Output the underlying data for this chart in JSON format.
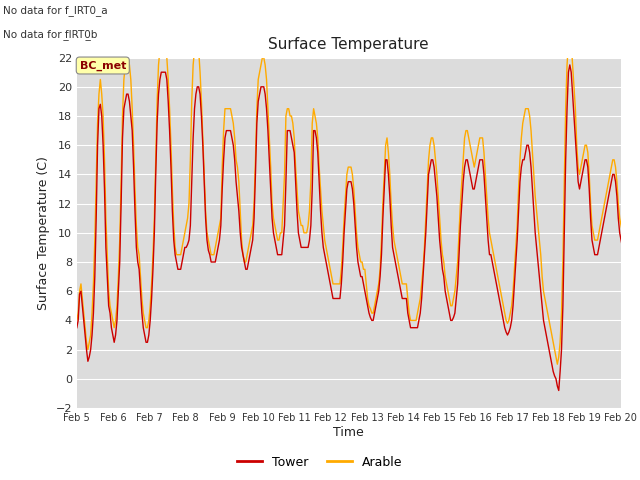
{
  "title": "Surface Temperature",
  "xlabel": "Time",
  "ylabel": "Surface Temperature (C)",
  "ylim": [
    -2,
    22
  ],
  "yticks": [
    -2,
    0,
    2,
    4,
    6,
    8,
    10,
    12,
    14,
    16,
    18,
    20,
    22
  ],
  "bg_color": "#dcdcdc",
  "fig_color": "#ffffff",
  "line_tower_color": "#cc0000",
  "line_arable_color": "#ffaa00",
  "legend_label_tower": "Tower",
  "legend_label_arable": "Arable",
  "bc_met_label": "BC_met",
  "no_data_text1": "No data for f_IRT0_a",
  "no_data_text2": "No data for f̲IRT0̲b",
  "xtick_labels": [
    "Feb 5",
    "Feb 6",
    "Feb 7",
    "Feb 8",
    "Feb 9",
    "Feb 10",
    "Feb 11",
    "Feb 12",
    "Feb 13",
    "Feb 14",
    "Feb 15",
    "Feb 16",
    "Feb 17",
    "Feb 18",
    "Feb 19",
    "Feb 20"
  ],
  "tower_data": [
    3.5,
    4.0,
    5.8,
    6.0,
    5.0,
    4.0,
    3.0,
    2.0,
    1.2,
    1.5,
    2.0,
    3.0,
    4.5,
    7.0,
    11.0,
    16.0,
    18.5,
    18.8,
    18.0,
    16.0,
    13.0,
    9.0,
    7.0,
    5.0,
    4.5,
    3.5,
    3.0,
    2.5,
    3.0,
    4.0,
    6.0,
    8.0,
    12.0,
    16.5,
    18.5,
    19.0,
    19.5,
    19.5,
    19.0,
    18.0,
    17.0,
    14.5,
    11.5,
    9.0,
    8.0,
    7.5,
    6.0,
    4.5,
    3.5,
    3.0,
    2.5,
    2.5,
    3.0,
    4.0,
    5.5,
    7.5,
    10.0,
    14.0,
    17.5,
    19.5,
    20.5,
    21.0,
    21.0,
    21.0,
    21.0,
    20.5,
    19.0,
    17.0,
    14.5,
    11.5,
    9.5,
    8.5,
    8.0,
    7.5,
    7.5,
    7.5,
    8.0,
    8.5,
    9.0,
    9.0,
    9.2,
    9.5,
    10.5,
    13.5,
    16.5,
    18.5,
    19.5,
    20.0,
    20.0,
    19.5,
    18.0,
    16.0,
    13.5,
    11.0,
    9.5,
    8.8,
    8.5,
    8.0,
    8.0,
    8.0,
    8.0,
    8.5,
    9.0,
    9.5,
    10.5,
    13.0,
    15.0,
    16.5,
    17.0,
    17.0,
    17.0,
    17.0,
    16.5,
    16.0,
    15.0,
    13.5,
    12.5,
    11.5,
    10.0,
    9.0,
    8.5,
    8.0,
    7.5,
    7.5,
    8.0,
    8.5,
    9.0,
    9.5,
    11.0,
    14.0,
    17.5,
    19.0,
    19.5,
    20.0,
    20.0,
    20.0,
    19.5,
    18.5,
    17.0,
    15.0,
    13.0,
    11.0,
    10.0,
    9.5,
    9.0,
    8.5,
    8.5,
    8.5,
    8.5,
    9.5,
    10.5,
    13.5,
    17.0,
    17.0,
    17.0,
    16.5,
    16.0,
    15.5,
    13.5,
    11.5,
    10.0,
    9.5,
    9.0,
    9.0,
    9.0,
    9.0,
    9.0,
    9.0,
    9.5,
    10.5,
    13.0,
    17.0,
    17.0,
    16.5,
    15.5,
    13.5,
    11.5,
    10.0,
    9.0,
    8.5,
    8.0,
    7.5,
    7.0,
    6.5,
    6.0,
    5.5,
    5.5,
    5.5,
    5.5,
    5.5,
    5.5,
    6.5,
    8.0,
    10.0,
    11.5,
    13.0,
    13.5,
    13.5,
    13.5,
    13.0,
    12.0,
    10.5,
    9.0,
    8.0,
    7.5,
    7.0,
    7.0,
    6.5,
    6.0,
    5.5,
    5.0,
    4.5,
    4.2,
    4.0,
    4.0,
    4.5,
    5.0,
    5.5,
    6.0,
    7.0,
    8.5,
    11.0,
    13.0,
    15.0,
    15.0,
    14.0,
    12.5,
    10.5,
    9.0,
    8.5,
    8.0,
    7.5,
    7.0,
    6.5,
    6.0,
    5.5,
    5.5,
    5.5,
    5.5,
    4.5,
    4.0,
    3.5,
    3.5,
    3.5,
    3.5,
    3.5,
    3.5,
    4.0,
    4.5,
    5.5,
    7.0,
    8.5,
    10.0,
    12.0,
    14.0,
    14.5,
    15.0,
    15.0,
    14.5,
    13.5,
    12.5,
    11.0,
    9.5,
    8.5,
    7.5,
    7.0,
    6.0,
    5.5,
    5.0,
    4.5,
    4.0,
    4.0,
    4.2,
    4.5,
    5.5,
    6.5,
    8.5,
    10.5,
    12.0,
    13.5,
    14.5,
    15.0,
    15.0,
    14.5,
    14.0,
    13.5,
    13.0,
    13.0,
    13.5,
    14.0,
    14.5,
    15.0,
    15.0,
    15.0,
    14.0,
    12.5,
    11.0,
    9.5,
    8.5,
    8.5,
    8.0,
    7.5,
    7.0,
    6.5,
    6.0,
    5.5,
    5.0,
    4.5,
    4.0,
    3.5,
    3.2,
    3.0,
    3.2,
    3.5,
    4.0,
    5.0,
    6.5,
    8.0,
    9.5,
    11.5,
    13.5,
    14.5,
    15.0,
    15.0,
    15.5,
    16.0,
    16.0,
    15.5,
    14.5,
    13.0,
    11.5,
    10.0,
    9.0,
    8.0,
    7.0,
    6.0,
    5.0,
    4.0,
    3.5,
    3.0,
    2.5,
    2.0,
    1.5,
    1.0,
    0.5,
    0.2,
    0.0,
    -0.5,
    -0.8,
    0.5,
    2.0,
    5.0,
    10.0,
    15.0,
    18.5,
    21.0,
    21.5,
    21.0,
    19.5,
    18.0,
    16.5,
    15.0,
    13.5,
    13.0,
    13.5,
    14.0,
    14.5,
    15.0,
    15.0,
    14.5,
    13.0,
    11.0,
    9.5,
    9.0,
    8.5,
    8.5,
    8.5,
    9.0,
    9.5,
    10.0,
    10.5,
    11.0,
    11.5,
    12.0,
    12.5,
    13.0,
    13.5,
    14.0,
    14.0,
    13.5,
    12.5,
    11.0,
    10.0,
    9.5,
    9.0,
    8.5,
    8.0,
    7.5,
    7.0,
    6.5,
    6.0,
    5.5,
    5.5,
    5.5,
    6.0,
    7.0,
    8.5,
    9.5,
    10.0,
    10.5,
    11.0,
    11.0,
    11.0,
    10.5,
    10.0,
    9.5,
    9.0,
    8.5,
    8.0,
    7.5
  ],
  "arable_data": [
    4.0,
    4.5,
    6.0,
    6.5,
    5.5,
    4.5,
    3.5,
    2.5,
    2.0,
    2.5,
    3.0,
    4.5,
    6.5,
    9.5,
    13.5,
    17.5,
    19.5,
    20.5,
    19.5,
    18.0,
    15.0,
    11.0,
    8.5,
    6.0,
    5.0,
    4.5,
    4.0,
    3.5,
    4.0,
    5.0,
    7.0,
    9.5,
    13.5,
    18.0,
    20.5,
    21.5,
    22.0,
    22.0,
    21.5,
    20.5,
    18.5,
    16.0,
    13.0,
    10.5,
    9.0,
    8.5,
    7.0,
    5.5,
    4.5,
    4.0,
    3.5,
    3.5,
    4.0,
    5.0,
    6.5,
    8.5,
    11.0,
    15.0,
    19.0,
    21.5,
    22.5,
    23.0,
    23.0,
    23.0,
    22.5,
    22.0,
    20.5,
    18.5,
    16.0,
    13.0,
    10.5,
    9.0,
    8.5,
    8.5,
    8.5,
    8.5,
    9.0,
    9.5,
    10.0,
    10.5,
    11.0,
    12.0,
    15.0,
    19.0,
    21.5,
    22.5,
    23.0,
    23.0,
    22.5,
    21.0,
    19.0,
    16.5,
    14.0,
    11.5,
    10.0,
    9.5,
    9.0,
    8.5,
    8.5,
    8.5,
    9.0,
    9.5,
    10.0,
    10.5,
    11.0,
    14.5,
    17.0,
    18.5,
    18.5,
    18.5,
    18.5,
    18.5,
    18.0,
    17.5,
    16.5,
    15.0,
    14.5,
    13.5,
    11.5,
    9.5,
    8.5,
    8.0,
    8.0,
    8.5,
    9.0,
    9.5,
    10.0,
    10.5,
    12.0,
    15.0,
    18.5,
    20.5,
    21.0,
    21.5,
    22.0,
    22.0,
    21.5,
    20.5,
    18.5,
    16.5,
    14.5,
    12.0,
    11.0,
    10.5,
    10.0,
    9.5,
    9.5,
    10.0,
    10.0,
    12.0,
    14.0,
    18.0,
    18.5,
    18.5,
    18.0,
    18.0,
    17.5,
    16.5,
    14.5,
    13.0,
    11.5,
    11.0,
    10.5,
    10.5,
    10.0,
    10.0,
    10.0,
    10.5,
    11.5,
    13.5,
    17.5,
    18.5,
    18.0,
    17.5,
    16.5,
    14.5,
    13.0,
    11.5,
    10.5,
    9.5,
    9.0,
    8.5,
    8.0,
    7.5,
    7.0,
    6.5,
    6.5,
    6.5,
    6.5,
    6.5,
    6.5,
    7.5,
    9.0,
    11.0,
    12.5,
    14.0,
    14.5,
    14.5,
    14.5,
    14.0,
    13.0,
    11.5,
    10.0,
    9.0,
    8.5,
    8.0,
    8.0,
    7.5,
    7.5,
    6.5,
    5.5,
    5.0,
    4.8,
    4.5,
    4.5,
    5.0,
    5.5,
    6.0,
    6.5,
    7.5,
    9.5,
    12.0,
    14.0,
    16.0,
    16.5,
    15.5,
    14.0,
    12.0,
    10.5,
    9.5,
    9.0,
    8.5,
    8.0,
    7.5,
    7.0,
    6.5,
    6.5,
    6.5,
    6.5,
    5.5,
    4.5,
    4.0,
    4.0,
    4.0,
    4.0,
    4.0,
    4.5,
    5.0,
    5.5,
    6.5,
    7.5,
    9.0,
    11.0,
    13.0,
    15.0,
    16.0,
    16.5,
    16.5,
    16.0,
    15.0,
    14.0,
    12.5,
    11.0,
    9.5,
    8.5,
    8.0,
    7.0,
    6.5,
    6.0,
    5.5,
    5.0,
    5.0,
    5.5,
    6.0,
    7.0,
    8.0,
    10.0,
    12.0,
    13.5,
    15.0,
    16.5,
    17.0,
    17.0,
    16.5,
    16.0,
    15.5,
    15.0,
    14.5,
    15.0,
    15.5,
    16.0,
    16.5,
    16.5,
    16.5,
    15.5,
    14.0,
    12.5,
    11.0,
    10.0,
    9.5,
    9.0,
    8.5,
    8.0,
    7.5,
    7.0,
    6.5,
    6.0,
    5.5,
    5.0,
    4.5,
    4.0,
    3.8,
    4.0,
    4.5,
    5.0,
    6.0,
    7.5,
    9.0,
    10.5,
    13.0,
    15.0,
    16.5,
    17.5,
    18.0,
    18.5,
    18.5,
    18.5,
    18.0,
    17.0,
    15.5,
    14.0,
    12.5,
    11.5,
    10.5,
    9.5,
    8.5,
    7.0,
    6.0,
    5.5,
    5.0,
    4.5,
    4.0,
    3.5,
    3.0,
    2.5,
    2.0,
    1.5,
    1.0,
    1.5,
    2.5,
    4.5,
    8.0,
    13.5,
    18.5,
    21.5,
    23.0,
    23.5,
    23.0,
    21.5,
    20.0,
    18.5,
    16.0,
    14.5,
    14.0,
    14.5,
    15.0,
    15.5,
    16.0,
    16.0,
    15.5,
    14.0,
    12.0,
    10.5,
    10.0,
    9.5,
    9.5,
    9.5,
    10.0,
    10.5,
    11.0,
    11.5,
    12.0,
    12.5,
    13.0,
    13.5,
    14.0,
    14.5,
    15.0,
    15.0,
    14.5,
    13.5,
    12.0,
    11.0,
    10.5,
    10.0,
    9.5,
    9.0,
    8.5,
    8.0,
    7.5,
    7.0,
    6.5,
    6.5,
    6.5,
    7.0,
    8.0,
    9.5,
    10.5,
    11.0,
    11.5,
    12.0,
    12.0,
    12.0,
    11.5,
    11.0,
    10.5,
    10.0,
    9.5,
    9.0,
    8.5
  ]
}
